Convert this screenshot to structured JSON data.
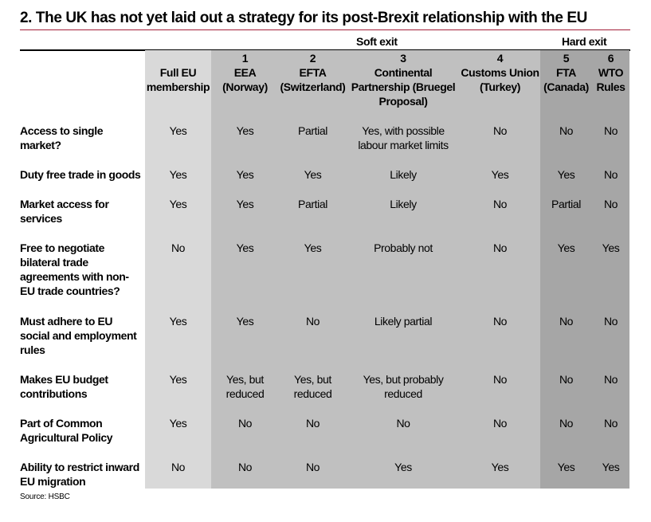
{
  "title": "2. The UK has not yet laid out a strategy for its post-Brexit relationship with the EU",
  "groups": {
    "soft": "Soft exit",
    "hard": "Hard exit"
  },
  "columns": [
    {
      "num": "",
      "name": "Full EU membership"
    },
    {
      "num": "1",
      "name": "EEA (Norway)"
    },
    {
      "num": "2",
      "name": "EFTA (Switzerland)"
    },
    {
      "num": "3",
      "name": "Continental Partnership (Bruegel Proposal)"
    },
    {
      "num": "4",
      "name": "Customs Union (Turkey)"
    },
    {
      "num": "5",
      "name": "FTA (Canada)"
    },
    {
      "num": "6",
      "name": "WTO Rules"
    }
  ],
  "rows": [
    {
      "label": "Access to single market?",
      "cells": [
        "Yes",
        "Yes",
        "Partial",
        "Yes, with possible labour market limits",
        "No",
        "No",
        "No"
      ]
    },
    {
      "label": "Duty free trade in goods",
      "cells": [
        "Yes",
        "Yes",
        "Yes",
        "Likely",
        "Yes",
        "Yes",
        "No"
      ]
    },
    {
      "label": "Market access for services",
      "cells": [
        "Yes",
        "Yes",
        "Partial",
        "Likely",
        "No",
        "Partial",
        "No"
      ]
    },
    {
      "label": "Free to negotiate bilateral trade agreements with non-EU trade countries?",
      "cells": [
        "No",
        "Yes",
        "Yes",
        "Probably not",
        "No",
        "Yes",
        "Yes"
      ]
    },
    {
      "label": "Must adhere to EU social and employment rules",
      "cells": [
        "Yes",
        "Yes",
        "No",
        "Likely partial",
        "No",
        "No",
        "No"
      ]
    },
    {
      "label": "Makes EU budget contributions",
      "cells": [
        "Yes",
        "Yes, but reduced",
        "Yes, but reduced",
        "Yes, but probably reduced",
        "No",
        "No",
        "No"
      ]
    },
    {
      "label": "Part of Common Agricultural Policy",
      "cells": [
        "Yes",
        "No",
        "No",
        "No",
        "No",
        "No",
        "No"
      ]
    },
    {
      "label": "Ability to restrict inward EU migration",
      "cells": [
        "No",
        "No",
        "No",
        "Yes",
        "Yes",
        "Yes",
        "Yes"
      ]
    }
  ],
  "source": "Source: HSBC",
  "colors": {
    "rule": "#a3203a",
    "full_eu": "#d9d9d9",
    "soft_exit": "#c0c0c0",
    "hard_exit": "#a6a6a6"
  }
}
